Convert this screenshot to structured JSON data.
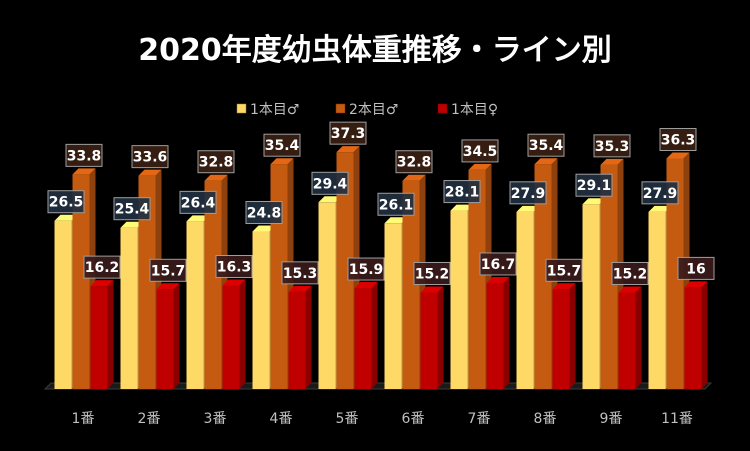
{
  "chart_data": {
    "type": "bar",
    "title": "2020年度幼虫体重推移・ライン別",
    "categories": [
      "1番",
      "2番",
      "3番",
      "4番",
      "5番",
      "6番",
      "7番",
      "8番",
      "9番",
      "11番"
    ],
    "series": [
      {
        "name": "1本目♂",
        "values": [
          26.5,
          25.4,
          26.4,
          24.8,
          29.4,
          26.1,
          28.1,
          27.9,
          29.1,
          27.9
        ],
        "color": "#FFD966",
        "label_bg": "#1F2F3F"
      },
      {
        "name": "2本目♂",
        "values": [
          33.8,
          33.6,
          32.8,
          35.4,
          37.3,
          32.8,
          34.5,
          35.4,
          35.3,
          36.3
        ],
        "color": "#C55A11",
        "label_bg": "#3A1F12"
      },
      {
        "name": "1本目♀",
        "values": [
          16.2,
          15.7,
          16.3,
          15.3,
          15.9,
          15.2,
          16.7,
          15.7,
          15.2,
          16
        ],
        "color": "#C00000",
        "label_bg": "#3A1A1A"
      }
    ],
    "ylim": [
      0,
      40
    ],
    "legend_position": "top",
    "grid": false
  }
}
